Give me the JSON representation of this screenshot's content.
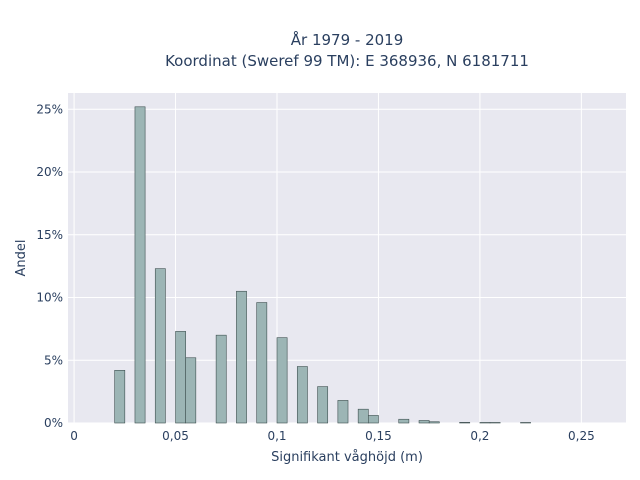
{
  "chart_data": {
    "type": "bar",
    "title_line1": "År 1979 - 2019",
    "title_line2": "Koordinat (Sweref 99 TM): E 368936, N 6181711",
    "xlabel": "Signifikant våghöjd (m)",
    "ylabel": "Andel",
    "xlim": [
      -0.003,
      0.272
    ],
    "ylim": [
      0,
      26.3
    ],
    "x_ticks": [
      0,
      0.05,
      0.1,
      0.15,
      0.2,
      0.25
    ],
    "x_tick_labels": [
      "0",
      "0,05",
      "0,1",
      "0,15",
      "0,2",
      "0,25"
    ],
    "y_ticks": [
      0,
      5,
      10,
      15,
      20,
      25
    ],
    "y_tick_labels": [
      "0%",
      "5%",
      "10%",
      "15%",
      "20%",
      "25%"
    ],
    "bar_width": 0.005,
    "bars": [
      {
        "x": 0.0225,
        "y": 4.2
      },
      {
        "x": 0.0325,
        "y": 25.2
      },
      {
        "x": 0.0425,
        "y": 12.3
      },
      {
        "x": 0.0525,
        "y": 7.3
      },
      {
        "x": 0.0575,
        "y": 5.2
      },
      {
        "x": 0.0725,
        "y": 7.0
      },
      {
        "x": 0.0825,
        "y": 10.5
      },
      {
        "x": 0.0925,
        "y": 9.6
      },
      {
        "x": 0.1025,
        "y": 6.8
      },
      {
        "x": 0.1125,
        "y": 4.5
      },
      {
        "x": 0.1225,
        "y": 2.9
      },
      {
        "x": 0.1325,
        "y": 1.8
      },
      {
        "x": 0.1425,
        "y": 1.1
      },
      {
        "x": 0.1475,
        "y": 0.6
      },
      {
        "x": 0.1625,
        "y": 0.3
      },
      {
        "x": 0.1725,
        "y": 0.2
      },
      {
        "x": 0.1775,
        "y": 0.1
      },
      {
        "x": 0.1925,
        "y": 0.05
      },
      {
        "x": 0.2025,
        "y": 0.04
      },
      {
        "x": 0.2075,
        "y": 0.04
      },
      {
        "x": 0.2225,
        "y": 0.03
      }
    ],
    "grid": true,
    "colors": {
      "bar_fill": "#9cb5b5",
      "bar_stroke": "#3d4f4f",
      "plot_background": "#e8e8f0",
      "grid": "#ffffff",
      "text": "#2a3f5f"
    }
  }
}
